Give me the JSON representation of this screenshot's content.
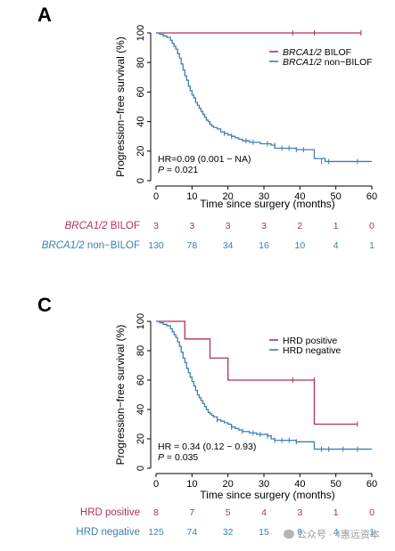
{
  "colors": {
    "series_a": "#b0305a",
    "series_b": "#3d7fb0",
    "axis": "#000000"
  },
  "watermark": "公众号 · 4惠远资本",
  "chart_data": [
    {
      "panel": "A",
      "type": "line",
      "xlabel": "Time since surgery (months)",
      "ylabel": "Progression−free survival (%)",
      "xlim": [
        0,
        60
      ],
      "ylim": [
        0,
        100
      ],
      "xticks": [
        0,
        10,
        20,
        30,
        40,
        50,
        60
      ],
      "yticks": [
        0,
        20,
        40,
        60,
        80,
        100
      ],
      "annotation": {
        "hr": "HR=0.09 (0.001 − NA)",
        "p_prefix": "P",
        "p_value": " = 0.021"
      },
      "legend": {
        "position": "top-right"
      },
      "series": [
        {
          "name_italic": "BRCA1/2",
          "name_rest": " BILOF",
          "color": "#b0305a",
          "x": [
            0,
            57
          ],
          "y": [
            100,
            100
          ],
          "censor_x": [
            38,
            44,
            57
          ],
          "censor_y": [
            100,
            100,
            100
          ]
        },
        {
          "name_italic": "BRCA1/2",
          "name_rest": " non−BILOF",
          "color": "#3d7fb0",
          "x": [
            0,
            1,
            2,
            3,
            4,
            4.5,
            5,
            5.5,
            6,
            6.5,
            7,
            7.5,
            8,
            8.5,
            9,
            9.5,
            10,
            10.5,
            11,
            11.5,
            12,
            12.5,
            13,
            13.5,
            14,
            14.5,
            15,
            15.5,
            16,
            17,
            18,
            19,
            20,
            21,
            22,
            23,
            24,
            25,
            26,
            27,
            28,
            29,
            30,
            31,
            32,
            33,
            34,
            35,
            36,
            37,
            38,
            39,
            40,
            41,
            42,
            43,
            44,
            45,
            46,
            47,
            48,
            49,
            50,
            51,
            52,
            53,
            54,
            55,
            56,
            57,
            58,
            59,
            60
          ],
          "y": [
            100,
            99,
            98,
            97,
            95,
            93,
            91,
            89,
            86,
            83,
            79,
            75,
            71,
            68,
            64,
            61,
            58,
            56,
            53,
            51,
            49,
            47,
            45,
            43,
            41,
            40,
            38,
            37,
            36,
            35,
            33,
            32,
            31,
            30,
            29,
            28,
            27,
            27,
            26,
            26,
            26,
            25,
            25,
            25,
            24,
            22,
            22,
            22,
            22,
            22,
            22,
            21,
            21,
            21,
            21,
            21,
            15,
            15,
            15,
            13,
            13,
            13,
            13,
            13,
            13,
            13,
            13,
            13,
            13,
            13,
            13,
            13,
            13
          ],
          "censor_x": [
            19,
            21,
            25,
            27,
            31,
            33,
            35,
            37,
            39,
            41,
            46,
            48,
            56
          ],
          "censor_y": [
            32,
            30,
            27,
            26,
            25,
            24,
            22,
            22,
            21,
            21,
            13,
            13,
            13
          ]
        }
      ],
      "risk_table": {
        "times": [
          0,
          10,
          20,
          30,
          40,
          50,
          60
        ],
        "rows": [
          {
            "label_italic": "BRCA1/2",
            "label_rest": " BILOF",
            "color": "#b0305a",
            "values": [
              "3",
              "3",
              "3",
              "3",
              "2",
              "1",
              "0"
            ]
          },
          {
            "label_italic": "BRCA1/2",
            "label_rest": " non−BILOF",
            "color": "#3d7fb0",
            "values": [
              "130",
              "78",
              "34",
              "16",
              "10",
              "4",
              "1"
            ]
          }
        ]
      }
    },
    {
      "panel": "C",
      "type": "line",
      "xlabel": "Time since surgery (months)",
      "ylabel": "Progression−free survival (%)",
      "xlim": [
        0,
        60
      ],
      "ylim": [
        0,
        100
      ],
      "xticks": [
        0,
        10,
        20,
        30,
        40,
        50,
        60
      ],
      "yticks": [
        0,
        20,
        40,
        60,
        80,
        100
      ],
      "annotation": {
        "hr": "HR = 0.34 (0.12 − 0.93)",
        "p_prefix": "P",
        "p_value": " = 0.035"
      },
      "legend": {
        "position": "top-right"
      },
      "series": [
        {
          "name_italic": "",
          "name_rest": "HRD positive",
          "color": "#b0305a",
          "x": [
            0,
            8,
            8,
            15,
            15,
            20,
            20,
            44,
            44,
            56
          ],
          "y": [
            100,
            100,
            88,
            88,
            75,
            75,
            60,
            60,
            30,
            30
          ],
          "censor_x": [
            38,
            44,
            56
          ],
          "censor_y": [
            60,
            60,
            30
          ]
        },
        {
          "name_italic": "",
          "name_rest": "HRD negative",
          "color": "#3d7fb0",
          "x": [
            0,
            1,
            2,
            3,
            4,
            4.5,
            5,
            5.5,
            6,
            6.5,
            7,
            7.5,
            8,
            8.5,
            9,
            9.5,
            10,
            10.5,
            11,
            11.5,
            12,
            12.5,
            13,
            13.5,
            14,
            14.5,
            15,
            15.5,
            16,
            17,
            18,
            19,
            20,
            21,
            22,
            23,
            24,
            25,
            26,
            27,
            28,
            29,
            30,
            31,
            32,
            33,
            34,
            35,
            36,
            37,
            38,
            39,
            40,
            41,
            42,
            43,
            44,
            45,
            46,
            47,
            48,
            49,
            50,
            51,
            52,
            53,
            54,
            55,
            56,
            57,
            58,
            59,
            60
          ],
          "y": [
            100,
            99,
            98,
            97,
            95,
            93,
            91,
            89,
            86,
            83,
            79,
            75,
            72,
            68,
            65,
            62,
            59,
            56,
            53,
            50,
            48,
            46,
            44,
            42,
            40,
            38,
            37,
            36,
            35,
            33,
            32,
            31,
            30,
            28,
            27,
            26,
            25,
            25,
            24,
            24,
            23,
            23,
            23,
            22,
            20,
            19,
            19,
            19,
            19,
            19,
            19,
            18,
            18,
            18,
            18,
            18,
            13,
            13,
            13,
            13,
            13,
            13,
            13,
            13,
            13,
            13,
            13,
            13,
            13,
            13,
            13,
            13,
            13
          ],
          "censor_x": [
            17,
            21,
            24,
            27,
            29,
            31,
            33,
            35,
            37,
            39,
            46,
            48,
            52,
            56
          ],
          "censor_y": [
            33,
            28,
            25,
            24,
            23,
            22,
            19,
            19,
            19,
            18,
            13,
            13,
            13,
            13
          ]
        }
      ],
      "risk_table": {
        "times": [
          0,
          10,
          20,
          30,
          40,
          50,
          60
        ],
        "rows": [
          {
            "label_italic": "",
            "label_rest": "HRD positive",
            "color": "#b0305a",
            "values": [
              "8",
              "7",
              "5",
              "4",
              "3",
              "1",
              "0"
            ]
          },
          {
            "label_italic": "",
            "label_rest": "HRD negative",
            "color": "#3d7fb0",
            "values": [
              "125",
              "74",
              "32",
              "15",
              "9",
              "4",
              "1"
            ]
          }
        ]
      }
    }
  ]
}
